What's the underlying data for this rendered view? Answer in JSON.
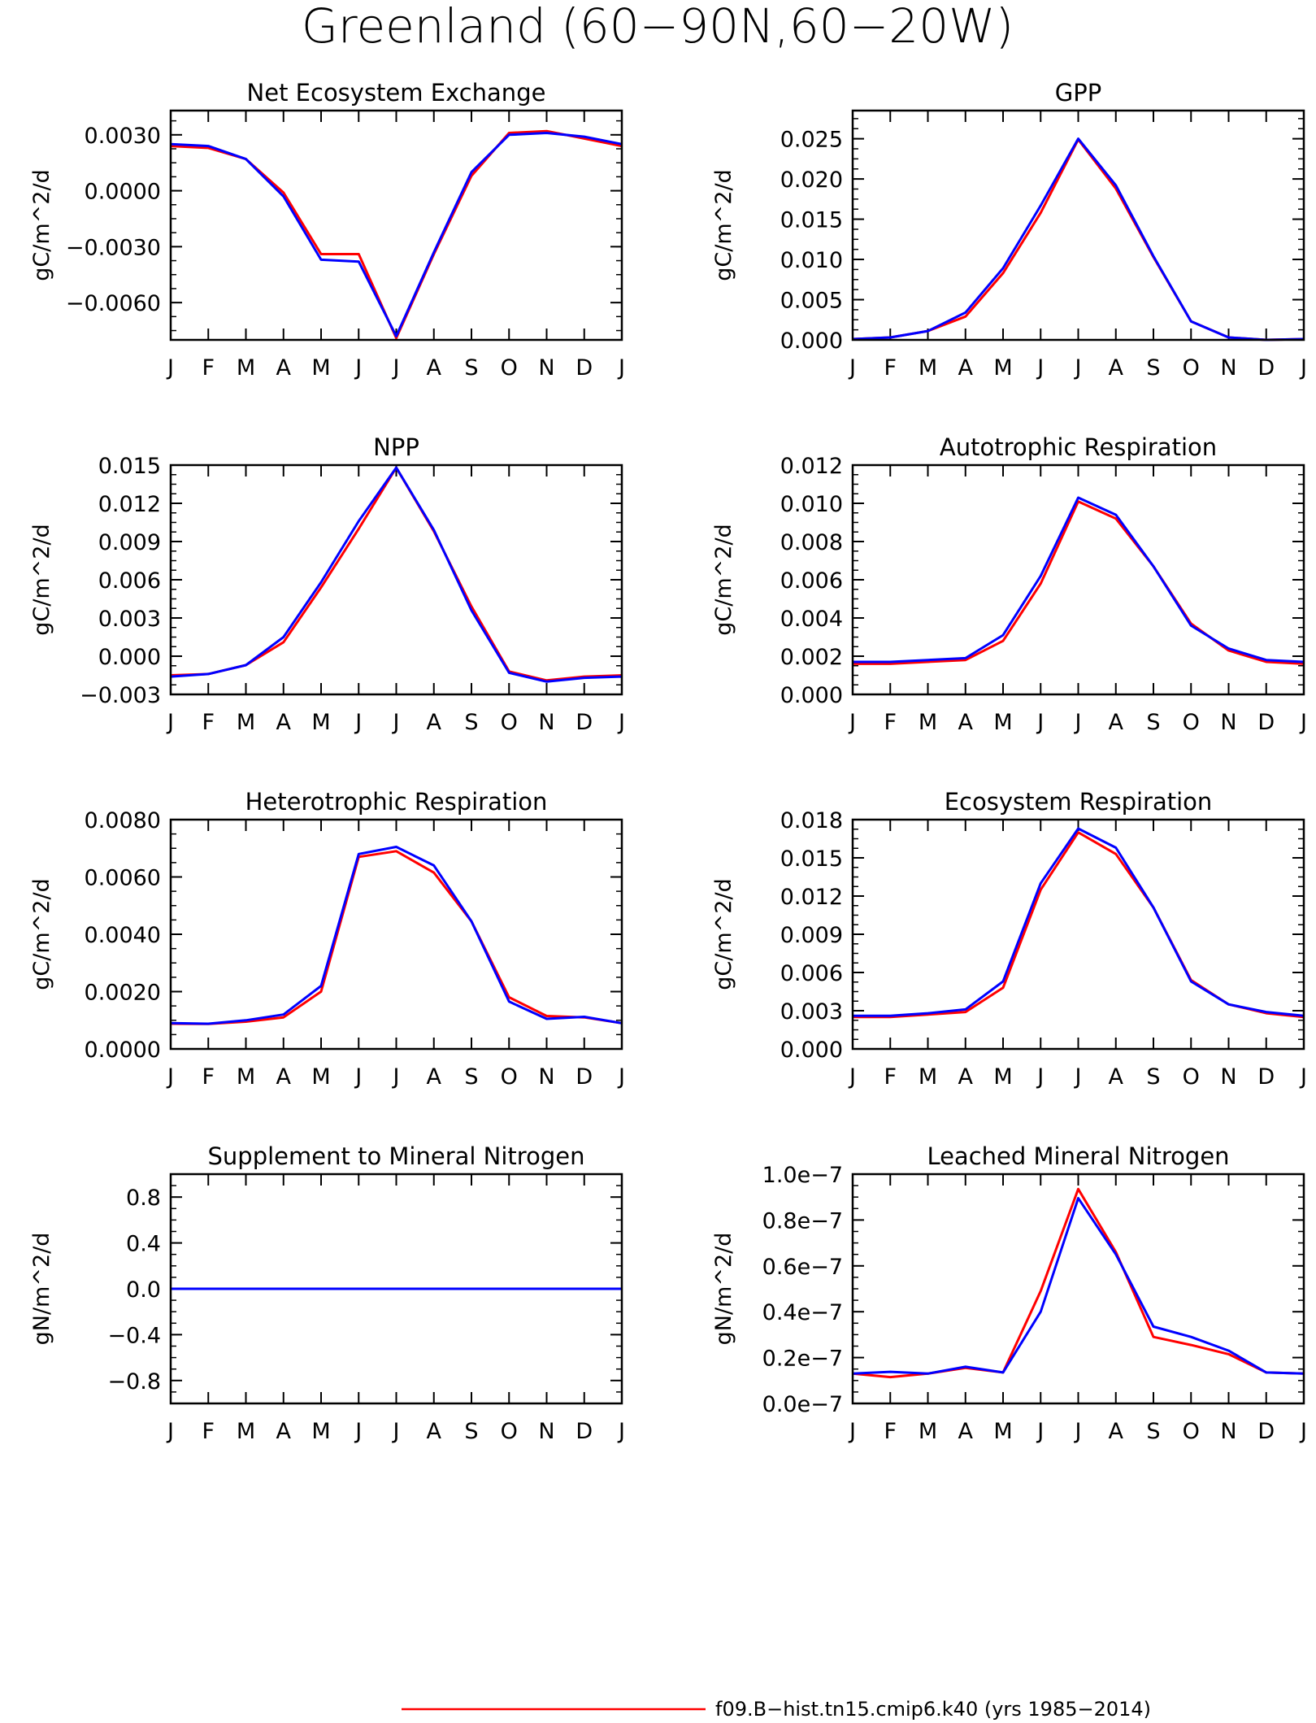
{
  "figure": {
    "title": "Greenland (60−90N,60−20W)",
    "legend": [
      {
        "label": "f09.B−hist.tn15.cmip6.k40 (yrs 1985−2014)",
        "color": "#ff0000"
      }
    ]
  },
  "chart_data": [
    {
      "type": "line",
      "title": "Net Ecosystem Exchange",
      "ylabel": "gC/m^2/d",
      "categories": [
        "J",
        "F",
        "M",
        "A",
        "M",
        "J",
        "J",
        "A",
        "S",
        "O",
        "N",
        "D",
        "J"
      ],
      "ylim": [
        -0.008,
        0.0043
      ],
      "yticks": [
        -0.006,
        -0.003,
        0.0,
        0.003
      ],
      "yticklabels": [
        "−0.0060",
        "−0.0030",
        "0.0000",
        "0.0030"
      ],
      "series": [
        {
          "color": "#ff0000",
          "values": [
            0.0024,
            0.0023,
            0.0017,
            -0.0001,
            -0.0034,
            -0.0034,
            -0.0079,
            -0.0034,
            0.0008,
            0.0031,
            0.0032,
            0.0028,
            0.0024
          ]
        },
        {
          "color": "#0000ff",
          "values": [
            0.0025,
            0.0024,
            0.0017,
            -0.0003,
            -0.0037,
            -0.0038,
            -0.0078,
            -0.0033,
            0.001,
            0.003,
            0.0031,
            0.0029,
            0.0025
          ]
        }
      ]
    },
    {
      "type": "line",
      "title": "GPP",
      "ylabel": "gC/m^2/d",
      "categories": [
        "J",
        "F",
        "M",
        "A",
        "M",
        "J",
        "J",
        "A",
        "S",
        "O",
        "N",
        "D",
        "J"
      ],
      "ylim": [
        0.0,
        0.0285
      ],
      "yticks": [
        0.0,
        0.005,
        0.01,
        0.015,
        0.02,
        0.025
      ],
      "yticklabels": [
        "0.000",
        "0.005",
        "0.010",
        "0.015",
        "0.020",
        "0.025"
      ],
      "series": [
        {
          "color": "#ff0000",
          "values": [
            0.0001,
            0.0003,
            0.0011,
            0.0029,
            0.0083,
            0.0158,
            0.0249,
            0.0188,
            0.0103,
            0.0023,
            0.0003,
            0.0,
            0.0001
          ]
        },
        {
          "color": "#0000ff",
          "values": [
            0.0001,
            0.0003,
            0.0011,
            0.0034,
            0.0089,
            0.0167,
            0.025,
            0.0192,
            0.0104,
            0.0023,
            0.0003,
            0.0,
            0.0001
          ]
        }
      ]
    },
    {
      "type": "line",
      "title": "NPP",
      "ylabel": "gC/m^2/d",
      "categories": [
        "J",
        "F",
        "M",
        "A",
        "M",
        "J",
        "J",
        "A",
        "S",
        "O",
        "N",
        "D",
        "J"
      ],
      "ylim": [
        -0.003,
        0.015
      ],
      "yticks": [
        -0.003,
        0.0,
        0.003,
        0.006,
        0.009,
        0.012,
        0.015
      ],
      "yticklabels": [
        "−0.003",
        "0.000",
        "0.003",
        "0.006",
        "0.009",
        "0.012",
        "0.015"
      ],
      "series": [
        {
          "color": "#ff0000",
          "values": [
            -0.0015,
            -0.0014,
            -0.0007,
            0.0011,
            0.0054,
            0.01,
            0.0148,
            0.0098,
            0.0039,
            -0.0012,
            -0.0019,
            -0.0016,
            -0.0015
          ]
        },
        {
          "color": "#0000ff",
          "values": [
            -0.0016,
            -0.0014,
            -0.0007,
            0.0015,
            0.0058,
            0.0106,
            0.0148,
            0.0099,
            0.0036,
            -0.0013,
            -0.002,
            -0.0017,
            -0.0016
          ]
        }
      ]
    },
    {
      "type": "line",
      "title": "Autotrophic Respiration",
      "ylabel": "gC/m^2/d",
      "categories": [
        "J",
        "F",
        "M",
        "A",
        "M",
        "J",
        "J",
        "A",
        "S",
        "O",
        "N",
        "D",
        "J"
      ],
      "ylim": [
        0.0,
        0.012
      ],
      "yticks": [
        0.0,
        0.002,
        0.004,
        0.006,
        0.008,
        0.01,
        0.012
      ],
      "yticklabels": [
        "0.000",
        "0.002",
        "0.004",
        "0.006",
        "0.008",
        "0.010",
        "0.012"
      ],
      "series": [
        {
          "color": "#ff0000",
          "values": [
            0.0016,
            0.0016,
            0.0017,
            0.0018,
            0.0028,
            0.0058,
            0.0101,
            0.0092,
            0.0067,
            0.0037,
            0.0023,
            0.0017,
            0.0016
          ]
        },
        {
          "color": "#0000ff",
          "values": [
            0.0017,
            0.0017,
            0.0018,
            0.0019,
            0.0031,
            0.0062,
            0.0103,
            0.0094,
            0.0067,
            0.0036,
            0.0024,
            0.0018,
            0.0017
          ]
        }
      ]
    },
    {
      "type": "line",
      "title": "Heterotrophic Respiration",
      "ylabel": "gC/m^2/d",
      "categories": [
        "J",
        "F",
        "M",
        "A",
        "M",
        "J",
        "J",
        "A",
        "S",
        "O",
        "N",
        "D",
        "J"
      ],
      "ylim": [
        0.0,
        0.008
      ],
      "yticks": [
        0.0,
        0.002,
        0.004,
        0.006,
        0.008
      ],
      "yticklabels": [
        "0.0000",
        "0.0020",
        "0.0040",
        "0.0060",
        "0.0080"
      ],
      "series": [
        {
          "color": "#ff0000",
          "values": [
            0.00088,
            0.00087,
            0.00095,
            0.0011,
            0.002,
            0.0067,
            0.0069,
            0.00615,
            0.00445,
            0.0018,
            0.00115,
            0.0011,
            0.0009
          ]
        },
        {
          "color": "#0000ff",
          "values": [
            0.0009,
            0.00088,
            0.001,
            0.0012,
            0.0022,
            0.0068,
            0.00705,
            0.0064,
            0.00445,
            0.00165,
            0.00105,
            0.00112,
            0.0009
          ]
        }
      ]
    },
    {
      "type": "line",
      "title": "Ecosystem Respiration",
      "ylabel": "gC/m^2/d",
      "categories": [
        "J",
        "F",
        "M",
        "A",
        "M",
        "J",
        "J",
        "A",
        "S",
        "O",
        "N",
        "D",
        "J"
      ],
      "ylim": [
        0.0,
        0.018
      ],
      "yticks": [
        0.0,
        0.003,
        0.006,
        0.009,
        0.012,
        0.015,
        0.018
      ],
      "yticklabels": [
        "0.000",
        "0.003",
        "0.006",
        "0.009",
        "0.012",
        "0.015",
        "0.018"
      ],
      "series": [
        {
          "color": "#ff0000",
          "values": [
            0.0025,
            0.0025,
            0.0027,
            0.0029,
            0.0048,
            0.0125,
            0.017,
            0.0153,
            0.0111,
            0.0054,
            0.0035,
            0.0028,
            0.0025
          ]
        },
        {
          "color": "#0000ff",
          "values": [
            0.0026,
            0.0026,
            0.0028,
            0.0031,
            0.0053,
            0.013,
            0.0173,
            0.0158,
            0.0111,
            0.0053,
            0.0035,
            0.0029,
            0.0026
          ]
        }
      ]
    },
    {
      "type": "line",
      "title": "Supplement to Mineral Nitrogen",
      "ylabel": "gN/m^2/d",
      "categories": [
        "J",
        "F",
        "M",
        "A",
        "M",
        "J",
        "J",
        "A",
        "S",
        "O",
        "N",
        "D",
        "J"
      ],
      "ylim": [
        -1.0,
        1.0
      ],
      "yticks": [
        -0.8,
        -0.4,
        0.0,
        0.4,
        0.8
      ],
      "yticklabels": [
        "−0.8",
        "−0.4",
        "0.0",
        "0.4",
        "0.8"
      ],
      "series": [
        {
          "color": "#ff0000",
          "values": [
            0,
            0,
            0,
            0,
            0,
            0,
            0,
            0,
            0,
            0,
            0,
            0,
            0
          ]
        },
        {
          "color": "#0000ff",
          "values": [
            0,
            0,
            0,
            0,
            0,
            0,
            0,
            0,
            0,
            0,
            0,
            0,
            0
          ]
        }
      ]
    },
    {
      "type": "line",
      "title": "Leached Mineral Nitrogen",
      "ylabel": "gN/m^2/d",
      "categories": [
        "J",
        "F",
        "M",
        "A",
        "M",
        "J",
        "J",
        "A",
        "S",
        "O",
        "N",
        "D",
        "J"
      ],
      "ylim": [
        0.0,
        1e-07
      ],
      "yticks": [
        0.0,
        2e-08,
        4e-08,
        6e-08,
        8e-08,
        1e-07
      ],
      "yticklabels": [
        "0.0e−7",
        "0.2e−7",
        "0.4e−7",
        "0.6e−7",
        "0.8e−7",
        "1.0e−7"
      ],
      "series": [
        {
          "color": "#ff0000",
          "values": [
            1.3e-08,
            1.15e-08,
            1.3e-08,
            1.55e-08,
            1.35e-08,
            4.9e-08,
            9.35e-08,
            6.6e-08,
            2.9e-08,
            2.55e-08,
            2.15e-08,
            1.35e-08,
            1.3e-08
          ]
        },
        {
          "color": "#0000ff",
          "values": [
            1.3e-08,
            1.38e-08,
            1.3e-08,
            1.6e-08,
            1.35e-08,
            4e-08,
            8.95e-08,
            6.5e-08,
            3.35e-08,
            2.9e-08,
            2.3e-08,
            1.35e-08,
            1.3e-08
          ]
        }
      ]
    }
  ]
}
